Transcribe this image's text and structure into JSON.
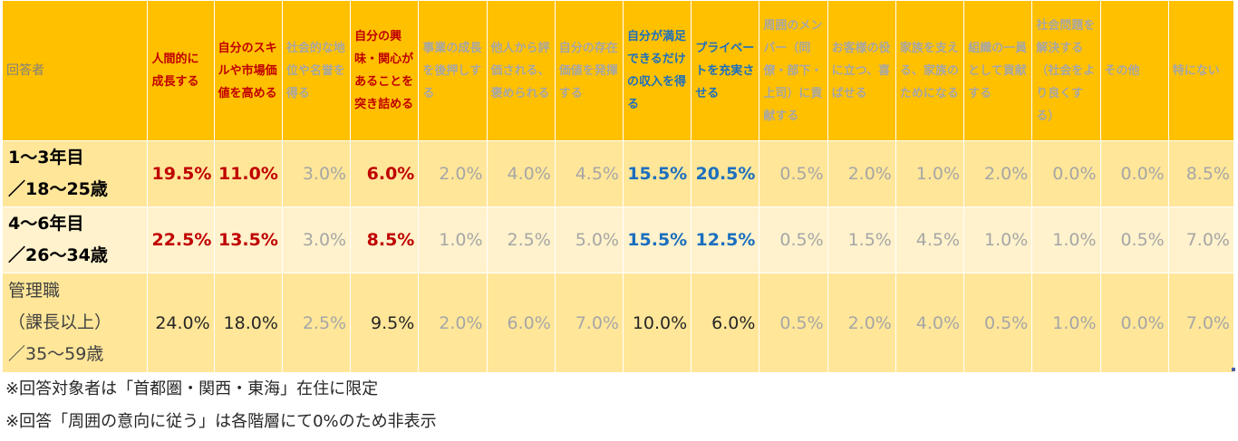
{
  "header": {
    "respondent": "回答者",
    "columns": [
      {
        "label": "人間的に成長する",
        "style": "red"
      },
      {
        "label": "自分のスキルや市場価値を高める",
        "style": "red"
      },
      {
        "label": "社会的な地位や名誉を得る",
        "style": "grey"
      },
      {
        "label": "自分の興味・関心があることを突き詰める",
        "style": "red"
      },
      {
        "label": "事業の成長を後押しする",
        "style": "grey"
      },
      {
        "label": "他人から評価される、褒められる",
        "style": "grey"
      },
      {
        "label": "自分の存在価値を発揮する",
        "style": "grey"
      },
      {
        "label": "自分が満足できるだけの収入を得る",
        "style": "blue"
      },
      {
        "label": "プライベートを充実させる",
        "style": "blue"
      },
      {
        "label": "周囲のメンバー（同僚・部下・上司）に貢献する",
        "style": "grey"
      },
      {
        "label": "お客様の役に立つ、喜ばせる",
        "style": "grey"
      },
      {
        "label": "家族を支える、家族のためになる",
        "style": "grey"
      },
      {
        "label": "組織の一員として貢献する",
        "style": "grey"
      },
      {
        "label": "社会問題を解決する（社会をより良くする）",
        "style": "grey"
      },
      {
        "label": "その他",
        "style": "grey"
      },
      {
        "label": "特にない",
        "style": "grey"
      }
    ]
  },
  "rows": [
    {
      "label_line1": "1～3年目",
      "label_line2": "／18～25歳",
      "values": [
        "19.5%",
        "11.0%",
        "3.0%",
        "6.0%",
        "2.0%",
        "4.0%",
        "4.5%",
        "15.5%",
        "20.5%",
        "0.5%",
        "2.0%",
        "1.0%",
        "2.0%",
        "0.0%",
        "0.0%",
        "8.5%"
      ]
    },
    {
      "label_line1": "4～6年目",
      "label_line2": "／26～34歳",
      "values": [
        "22.5%",
        "13.5%",
        "3.0%",
        "8.5%",
        "1.0%",
        "2.5%",
        "5.0%",
        "15.5%",
        "12.5%",
        "0.5%",
        "1.5%",
        "4.5%",
        "1.0%",
        "1.0%",
        "0.5%",
        "7.0%"
      ]
    },
    {
      "label_line1": "管理職",
      "label_line2": "（課長以上）",
      "label_line3": "／35～59歳",
      "values": [
        "24.0%",
        "18.0%",
        "2.5%",
        "9.5%",
        "2.0%",
        "6.0%",
        "7.0%",
        "10.0%",
        "6.0%",
        "0.5%",
        "2.0%",
        "4.0%",
        "0.5%",
        "1.0%",
        "0.0%",
        "7.0%"
      ]
    }
  ],
  "notes": [
    "※回答対象者は「首都圏・関西・東海」在住に限定",
    "※回答「周囲の意向に従う」は各階層にて0%のため非表示"
  ]
}
